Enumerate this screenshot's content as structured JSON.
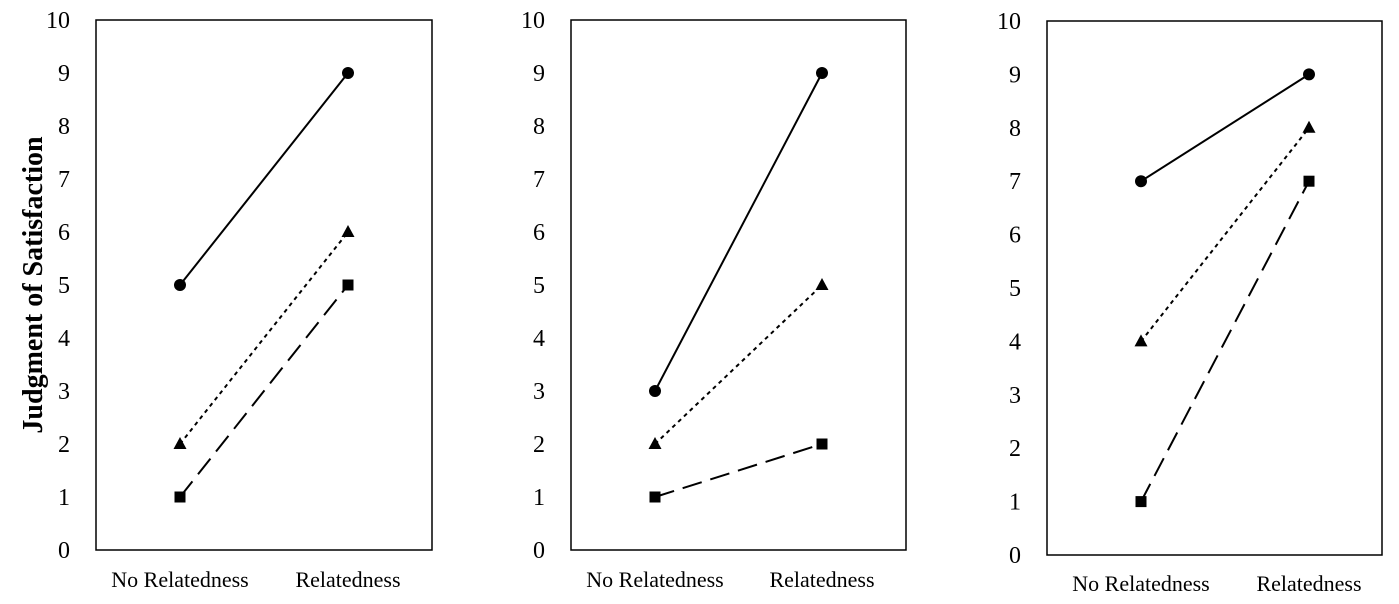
{
  "chart_data": [
    {
      "type": "line",
      "categories": [
        "No Relatedness",
        "Relatedness"
      ],
      "ylabel": "Judgment of Satisfaction",
      "xlabel": "",
      "ylim": [
        0,
        10
      ],
      "yticks": [
        "0",
        "1",
        "2",
        "3",
        "4",
        "5",
        "6",
        "7",
        "8",
        "9",
        "10"
      ],
      "grid": false,
      "series": [
        {
          "marker": "circle",
          "line": "solid",
          "values": [
            5,
            9
          ]
        },
        {
          "marker": "triangle",
          "line": "dotted",
          "values": [
            2,
            6
          ]
        },
        {
          "marker": "square",
          "line": "dashed",
          "values": [
            1,
            5
          ]
        }
      ]
    },
    {
      "type": "line",
      "categories": [
        "No Relatedness",
        "Relatedness"
      ],
      "ylabel": "",
      "xlabel": "",
      "ylim": [
        0,
        10
      ],
      "yticks": [
        "0",
        "1",
        "2",
        "3",
        "4",
        "5",
        "6",
        "7",
        "8",
        "9",
        "10"
      ],
      "grid": false,
      "series": [
        {
          "marker": "circle",
          "line": "solid",
          "values": [
            3,
            9
          ]
        },
        {
          "marker": "triangle",
          "line": "dotted",
          "values": [
            2,
            5
          ]
        },
        {
          "marker": "square",
          "line": "dashed",
          "values": [
            1,
            2
          ]
        }
      ]
    },
    {
      "type": "line",
      "categories": [
        "No Relatedness",
        "Relatedness"
      ],
      "ylabel": "",
      "xlabel": "",
      "ylim": [
        0,
        10
      ],
      "yticks": [
        "0",
        "1",
        "2",
        "3",
        "4",
        "5",
        "6",
        "7",
        "8",
        "9",
        "10"
      ],
      "grid": false,
      "series": [
        {
          "marker": "circle",
          "line": "solid",
          "values": [
            7,
            9
          ]
        },
        {
          "marker": "triangle",
          "line": "dotted",
          "values": [
            4,
            8
          ]
        },
        {
          "marker": "square",
          "line": "dashed",
          "values": [
            1,
            7
          ]
        }
      ]
    }
  ]
}
